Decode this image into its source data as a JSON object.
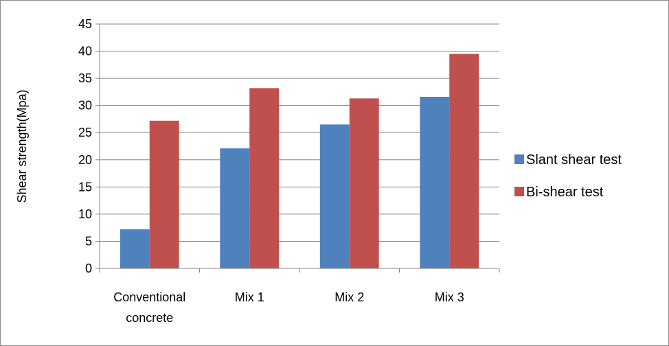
{
  "chart_data": {
    "type": "bar",
    "title": "",
    "xlabel": "",
    "ylabel": "Shear strength(Mpa)",
    "categories": [
      "Conventional concrete",
      "Mix 1",
      "Mix 2",
      "Mix 3"
    ],
    "category_lines": [
      [
        "Conventional",
        "concrete"
      ],
      [
        "Mix 1"
      ],
      [
        "Mix 2"
      ],
      [
        "Mix 3"
      ]
    ],
    "series": [
      {
        "name": "Slant shear test",
        "color": "#4f81bd",
        "values": [
          7.2,
          22.1,
          26.5,
          31.6
        ]
      },
      {
        "name": "Bi-shear test",
        "color": "#c0504d",
        "values": [
          27.2,
          33.2,
          31.3,
          39.5
        ]
      }
    ],
    "ylim": [
      0,
      45
    ],
    "yticks": [
      0,
      5,
      10,
      15,
      20,
      25,
      30,
      35,
      40,
      45
    ],
    "grid": true,
    "legend_position": "right"
  }
}
